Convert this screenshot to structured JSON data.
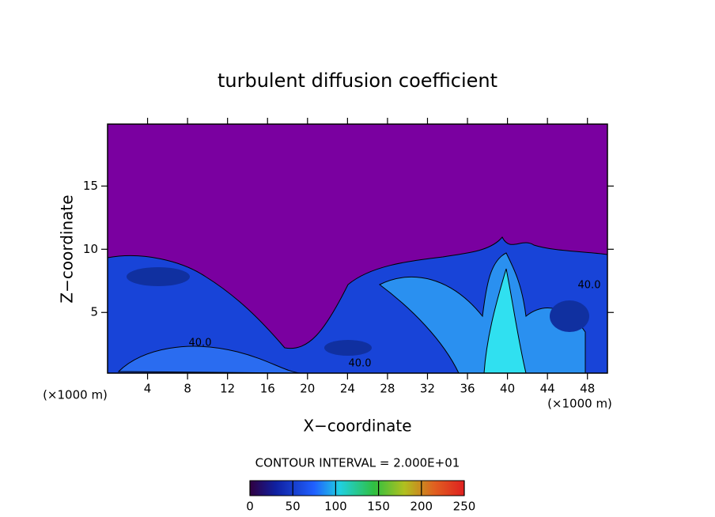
{
  "chart_data": {
    "type": "contour",
    "title": "turbulent diffusion coefficient",
    "xlabel": "X−coordinate",
    "ylabel": "Z−coordinate",
    "x_unit": "(×1000 m)",
    "xlim": [
      0,
      50
    ],
    "xticks": [
      4,
      8,
      12,
      16,
      20,
      24,
      28,
      32,
      36,
      40,
      44,
      48
    ],
    "ylim": [
      0.2,
      19.9
    ],
    "yticks": [
      5,
      10,
      15
    ],
    "contour_interval": "CONTOUR INTERVAL = 2.000E+01",
    "contour_labels": [
      "40.0",
      "40.0",
      "40.0"
    ],
    "colorbar": {
      "clim": [
        0,
        250
      ],
      "ticks": [
        0,
        50,
        100,
        150,
        200,
        250
      ]
    }
  }
}
